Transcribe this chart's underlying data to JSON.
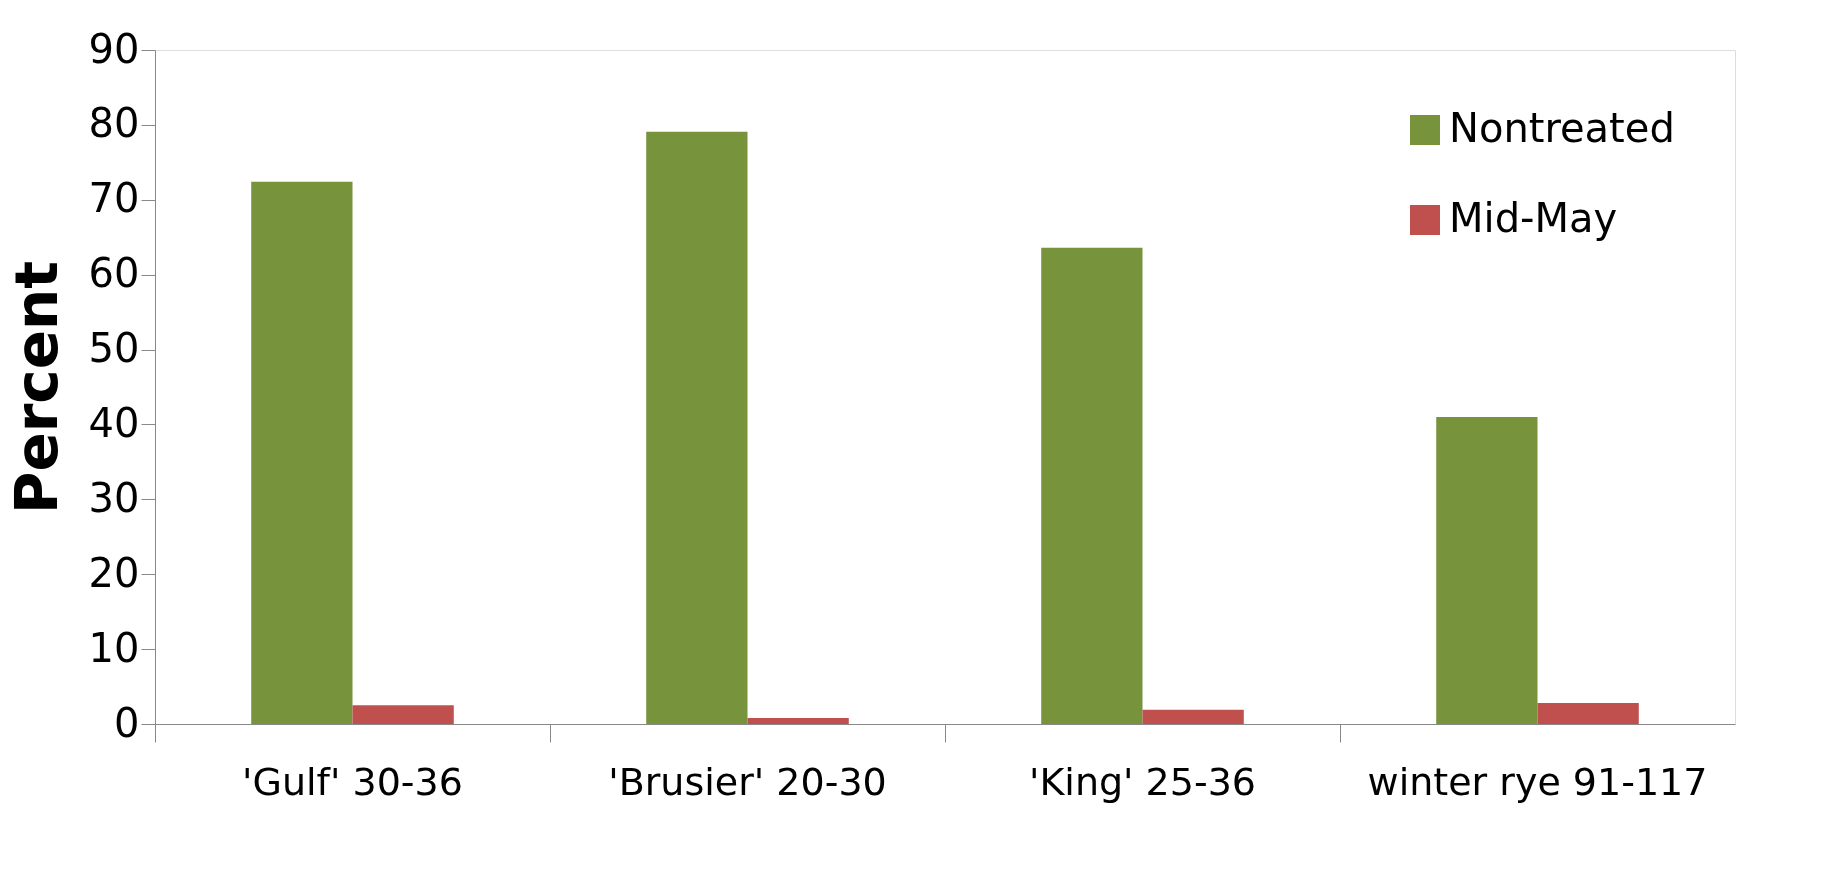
{
  "chart_data": {
    "type": "bar",
    "ylabel": "Percent",
    "categories": [
      "'Gulf' 30-36",
      "'Brusier' 20-30",
      "'King' 25-36",
      "winter rye 91-117"
    ],
    "series": [
      {
        "name": "Nontreated",
        "color": "#77933c",
        "values": [
          72.4,
          79.1,
          63.6,
          41.0
        ]
      },
      {
        "name": "Mid-May",
        "color": "#c0504d",
        "values": [
          2.5,
          0.8,
          1.9,
          2.8
        ]
      }
    ],
    "ylim": [
      0,
      90
    ],
    "yticks": [
      0,
      10,
      20,
      30,
      40,
      50,
      60,
      70,
      80,
      90
    ],
    "grid": false,
    "legend": "top right"
  }
}
